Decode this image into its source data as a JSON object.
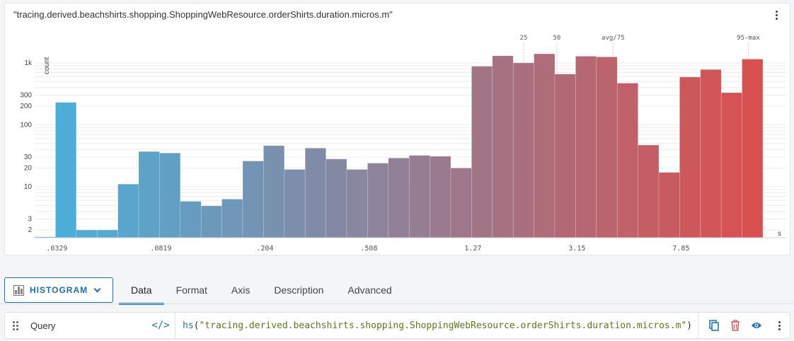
{
  "chart": {
    "title": "\"tracing.derived.beachshirts.shopping.ShoppingWebResource.orderShirts.duration.micros.m\"",
    "unit_label": "s",
    "y_axis_label": "count"
  },
  "chart_data": {
    "type": "bar",
    "title": "\"tracing.derived.beachshirts.shopping.ShoppingWebResource.orderShirts.duration.micros.m\"",
    "xlabel": "s",
    "ylabel": "count",
    "yscale": "log",
    "ylim": [
      1.5,
      1600
    ],
    "x_tick_labels": [
      ".0329",
      ".0819",
      ".204",
      ".508",
      "1.27",
      "3.15",
      "7.85"
    ],
    "y_tick_labels": [
      "1k",
      "300",
      "200",
      "100",
      "30",
      "20",
      "10",
      "3",
      "2"
    ],
    "y_tick_values": [
      1000,
      300,
      200,
      100,
      30,
      20,
      10,
      3,
      2
    ],
    "values": [
      1.55,
      230,
      2,
      2,
      11,
      37,
      35,
      5.8,
      4.9,
      6.3,
      26,
      46,
      19,
      42,
      28,
      19,
      24,
      29,
      32,
      31,
      20,
      880,
      1300,
      1000,
      1400,
      660,
      1280,
      1250,
      470,
      47,
      17,
      590,
      780,
      330,
      1150
    ],
    "color_start": "#49b0dd",
    "color_end": "#d95050",
    "percentile_markers": [
      {
        "label": "25",
        "bin": 23.5
      },
      {
        "label": "50",
        "bin": 25.1
      },
      {
        "label": "avg/75",
        "bin": 27.8
      },
      {
        "label": "95-max",
        "bin": 34.3
      }
    ]
  },
  "toolbar": {
    "type_label": "HISTOGRAM",
    "tabs": [
      {
        "label": "Data",
        "active": true
      },
      {
        "label": "Format",
        "active": false
      },
      {
        "label": "Axis",
        "active": false
      },
      {
        "label": "Description",
        "active": false
      },
      {
        "label": "Advanced",
        "active": false
      }
    ]
  },
  "query": {
    "label": "Query",
    "code_toggle": "</>",
    "function_name": "hs",
    "open_paren": "(",
    "argument": "\"tracing.derived.beachshirts.shopping.ShoppingWebResource.orderShirts.duration.micros.m\"",
    "close_paren": ")",
    "accent_color": "#1a6fb0",
    "delete_color": "#d9534f"
  },
  "icons": {
    "chart_menu": "kebab-menu-icon",
    "type_icon": "histogram-icon",
    "dropdown": "chevron-down-icon",
    "drag": "drag-handle-icon",
    "code": "code-toggle-icon",
    "copy": "copy-icon",
    "delete": "trash-icon",
    "visibility": "eye-icon",
    "row_menu": "kebab-menu-icon"
  }
}
